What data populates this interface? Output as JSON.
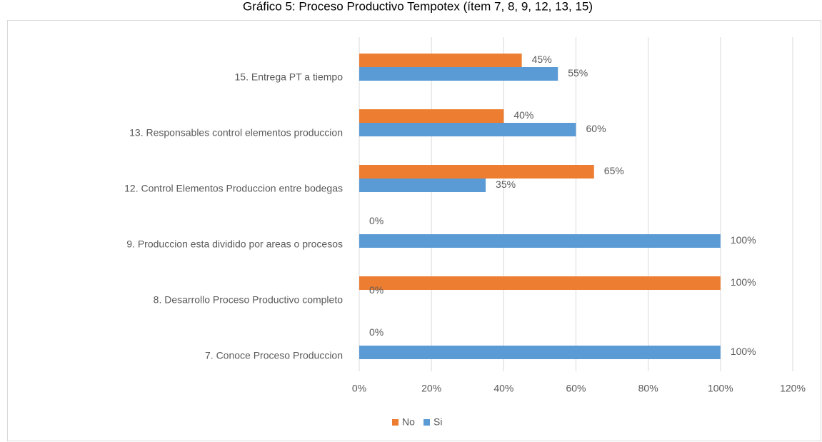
{
  "chart_data": {
    "type": "hbar",
    "title": "Gráfico 5: Proceso Productivo Tempotex (ítem 7, 8, 9, 12, 13, 15)",
    "categories": [
      "15. Entrega PT a tiempo",
      "13. Responsables control elementos produccion",
      "12. Control Elementos Produccion entre bodegas",
      "9. Produccion esta dividido por areas o procesos",
      "8. Desarrollo Proceso Productivo completo",
      "7. Conoce Proceso Produccion"
    ],
    "series": [
      {
        "name": "No",
        "color": "#ed7d31",
        "values": [
          45,
          40,
          65,
          0,
          100,
          0
        ],
        "value_labels": [
          "45%",
          "40%",
          "65%",
          "0%",
          "100%",
          "0%"
        ]
      },
      {
        "name": "Si",
        "color": "#5b9bd5",
        "values": [
          55,
          60,
          35,
          100,
          0,
          100
        ],
        "value_labels": [
          "55%",
          "60%",
          "35%",
          "100%",
          "0%",
          "100%"
        ]
      }
    ],
    "xlim": [
      0,
      120
    ],
    "xticks": [
      {
        "value": 0,
        "label": "0%"
      },
      {
        "value": 20,
        "label": "20%"
      },
      {
        "value": 40,
        "label": "40%"
      },
      {
        "value": 60,
        "label": "60%"
      },
      {
        "value": 80,
        "label": "80%"
      },
      {
        "value": 100,
        "label": "100%"
      },
      {
        "value": 120,
        "label": "120%"
      }
    ],
    "grid": true,
    "legend": "bottom"
  }
}
